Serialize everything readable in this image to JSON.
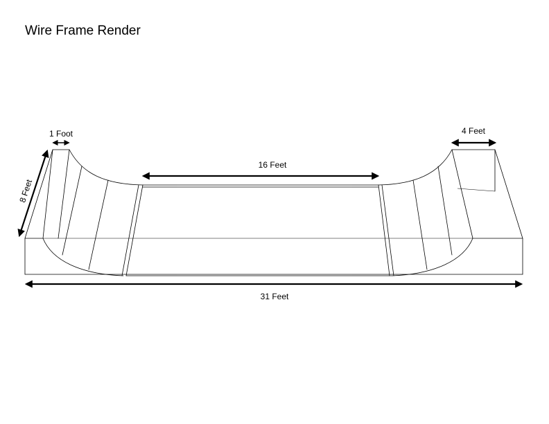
{
  "title": "Wire Frame Render",
  "dimensions": {
    "deck_width": "1 Foot",
    "ramp_depth": "8 Feet",
    "flat_bottom": "16 Feet",
    "platform": "4 Feet",
    "total_length": "31 Feet"
  }
}
